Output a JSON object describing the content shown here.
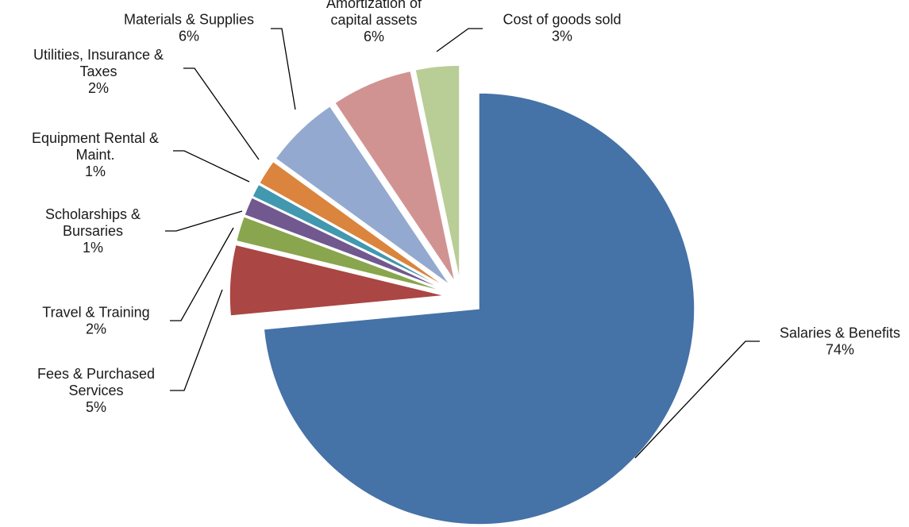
{
  "chart_data": {
    "type": "pie",
    "title": "",
    "start_angle_deg": 0,
    "direction": "clockwise",
    "slices": [
      {
        "label_lines": [
          "Salaries & Benefits"
        ],
        "value_label": "74%",
        "value": 73.5,
        "color": "#4572A7",
        "exploded": false
      },
      {
        "label_lines": [
          "Fees & Purchased",
          "Services"
        ],
        "value_label": "5%",
        "value": 5.3,
        "color": "#AA4643",
        "exploded": true
      },
      {
        "label_lines": [
          "Travel & Training"
        ],
        "value_label": "2%",
        "value": 1.9,
        "color": "#89A54E",
        "exploded": true
      },
      {
        "label_lines": [
          "Scholarships &",
          "Bursaries"
        ],
        "value_label": "1%",
        "value": 1.4,
        "color": "#71588F",
        "exploded": true
      },
      {
        "label_lines": [
          "Equipment Rental &",
          "Maint."
        ],
        "value_label": "1%",
        "value": 1.0,
        "color": "#4198AF",
        "exploded": true
      },
      {
        "label_lines": [
          "Utilities, Insurance &",
          "Taxes"
        ],
        "value_label": "2%",
        "value": 1.9,
        "color": "#DB843D",
        "exploded": true
      },
      {
        "label_lines": [
          "Materials & Supplies"
        ],
        "value_label": "6%",
        "value": 5.6,
        "color": "#93A9CF",
        "exploded": true
      },
      {
        "label_lines": [
          "Amortization of",
          "capital assets"
        ],
        "value_label": "6%",
        "value": 6.1,
        "color": "#D19392",
        "exploded": true
      },
      {
        "label_lines": [
          "Cost of goods sold"
        ],
        "value_label": "3%",
        "value": 3.3,
        "color": "#B9CD96",
        "exploded": true
      }
    ]
  }
}
